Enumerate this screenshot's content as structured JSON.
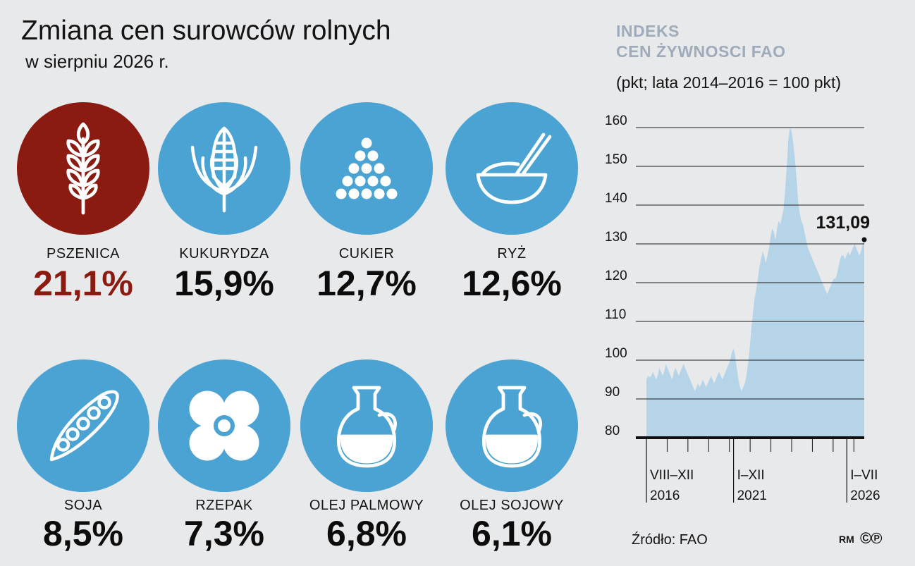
{
  "header": {
    "title": "Zmiana cen surowców rolnych",
    "subtitle": "w sierpniu 2026 r."
  },
  "colors": {
    "accent_blue": "#4aa3d2",
    "accent_red": "#8b1a10",
    "area_fill": "#b5d4e8"
  },
  "commodities": [
    {
      "label": "PSZENICA",
      "value": "21,1%",
      "icon": "wheat-icon",
      "highlight": true
    },
    {
      "label": "KUKURYDZA",
      "value": "15,9%",
      "icon": "corn-icon",
      "highlight": false
    },
    {
      "label": "CUKIER",
      "value": "12,7%",
      "icon": "sugar-icon",
      "highlight": false
    },
    {
      "label": "RYŻ",
      "value": "12,6%",
      "icon": "rice-bowl-icon",
      "highlight": false
    },
    {
      "label": "SOJA",
      "value": "8,5%",
      "icon": "soy-pod-icon",
      "highlight": false
    },
    {
      "label": "RZEPAK",
      "value": "7,3%",
      "icon": "rapeseed-flower-icon",
      "highlight": false
    },
    {
      "label": "OLEJ PALMOWY",
      "value": "6,8%",
      "icon": "oil-jug-icon",
      "highlight": false
    },
    {
      "label": "OLEJ SOJOWY",
      "value": "6,1%",
      "icon": "oil-jug-icon",
      "highlight": false
    }
  ],
  "chart_head": {
    "line1": "INDEKS",
    "line2": "CEN ŻYWNOSCI FAO",
    "unit": "(pkt; lata 2014–2016 = 100 pkt)"
  },
  "chart_data": {
    "type": "area",
    "title": "INDEKS CEN ŻYWNOSCI FAO",
    "ylabel": "(pkt; lata 2014–2016 = 100 pkt)",
    "ylim": [
      80,
      160
    ],
    "yticks": [
      80,
      90,
      100,
      110,
      120,
      130,
      140,
      150,
      160
    ],
    "x_period_labels": [
      {
        "line1": "VIII–XII",
        "line2": "2016",
        "position": 0
      },
      {
        "line1": "I–XII",
        "line2": "2021",
        "position": 0.4
      },
      {
        "line1": "I–VII",
        "line2": "2026",
        "position": 0.92
      }
    ],
    "values": [
      95,
      96,
      95.5,
      96,
      97,
      96,
      95,
      96,
      98,
      97,
      96,
      97,
      99,
      98,
      97,
      96,
      95,
      97,
      98,
      97,
      96,
      97,
      98,
      99,
      98,
      97,
      96,
      95,
      94,
      93,
      92,
      93,
      94,
      93,
      94,
      95,
      94,
      93,
      94,
      95,
      96,
      95,
      94,
      95,
      96,
      97,
      96,
      95,
      96,
      97,
      98,
      99,
      100,
      102,
      103,
      101,
      98,
      95,
      93,
      92,
      93,
      94,
      96,
      99,
      103,
      108,
      112,
      116,
      118,
      121,
      124,
      126,
      128,
      127,
      125,
      127,
      129,
      132,
      134,
      133,
      131,
      134,
      136,
      135,
      137,
      139,
      144,
      150,
      157,
      160,
      159,
      156,
      152,
      147,
      141,
      138,
      136,
      135,
      133,
      131,
      129,
      128,
      127,
      126,
      125,
      124,
      123,
      122,
      121,
      120,
      119,
      118,
      117,
      118,
      119,
      120,
      121,
      121,
      122,
      124,
      126,
      127,
      127,
      126,
      127,
      128,
      127,
      128,
      129,
      130,
      129,
      128,
      127,
      128,
      130,
      131.09
    ],
    "last_value_label": "131,09",
    "grid": true
  },
  "footer": {
    "source": "Źródło: FAO",
    "agency": "RM",
    "copyright": "©℗"
  }
}
